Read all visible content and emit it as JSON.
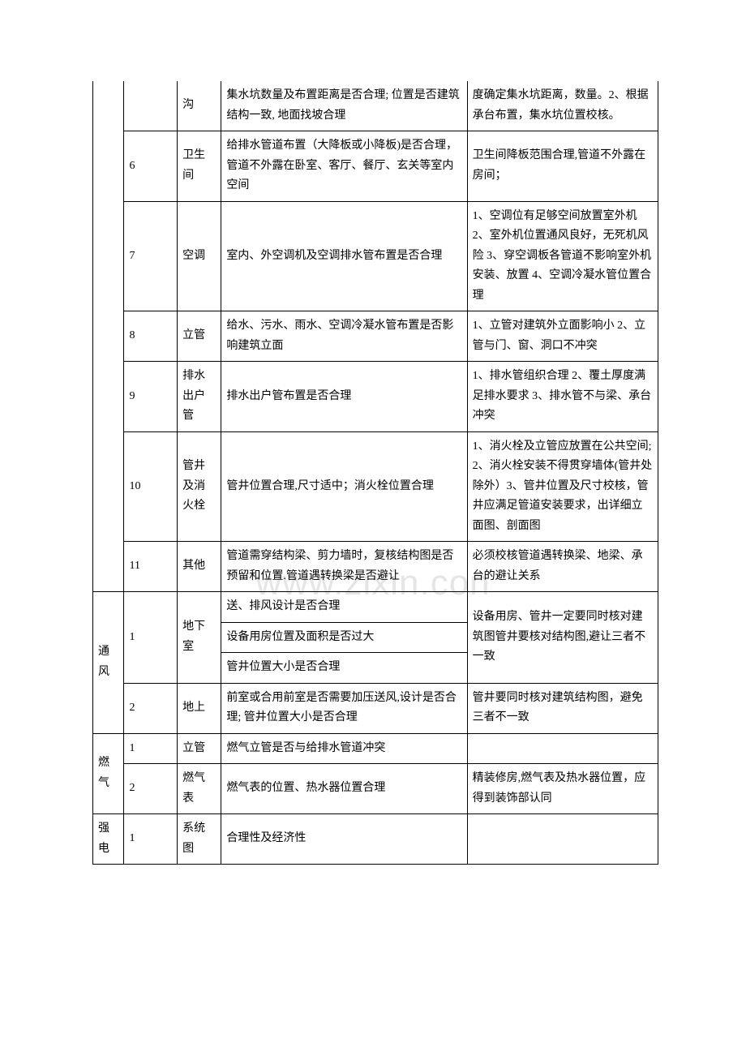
{
  "watermark": "www.zixin.con",
  "rows": [
    {
      "cat": "",
      "num": "",
      "item": "沟",
      "desc": "集水坑数量及布置距离是否合理; 位置是否建筑结构一致, 地面找坡合理",
      "note": "度确定集水坑距离，数量。2、根据承台布置，集水坑位置校核。"
    },
    {
      "num": "6",
      "item": "卫生间",
      "desc": "给排水管道布置（大降板或小降板)是否合理，管道不外露在卧室、客厅、餐厅、玄关等室内空间",
      "note": "卫生间降板范围合理,管道不外露在房间；"
    },
    {
      "num": "7",
      "item": "空调",
      "desc": "室内、外空调机及空调排水管布置是否合理",
      "note": "1、空调位有足够空间放置室外机 2、室外机位置通风良好，无死机风险 3、穿空调板各管道不影响室外机安装、放置 4、空调冷凝水管位置合理"
    },
    {
      "num": "8",
      "item": "立管",
      "desc": "给水、污水、雨水、空调冷凝水管布置是否影响建筑立面",
      "note": "1、立管对建筑外立面影响小 2、立管与门、窗、洞口不冲突"
    },
    {
      "num": "9",
      "item": "排水出户管",
      "desc": "排水出户管布置是否合理",
      "note": "1、排水管组织合理 2、覆土厚度满足排水要求 3、排水管不与梁、承台冲突"
    },
    {
      "num": "10",
      "item": "管井及消火栓",
      "desc": "管井位置合理,尺寸适中；消火栓位置合理",
      "note": "1、消火栓及立管应放置在公共空间;2、消火栓安装不得贯穿墙体(管井处除外）3、管井位置及尺寸校核，管井应满足管道安装要求，出详细立面图、剖面图"
    },
    {
      "num": "11",
      "item": "其他",
      "desc": "管道需穿结构梁、剪力墙时，复核结构图是否预留和位置.管道遇转换梁是否避让",
      "note": "必须校核管道遇转换梁、地梁、承台的避让关系"
    },
    {
      "cat": "通风",
      "num": "1",
      "item": "地下室",
      "desc_a": "送、排风设计是否合理",
      "desc_b": "设备用房位置及面积是否过大",
      "desc_c": "管井位置大小是否合理",
      "note": "设备用房、管井一定要同时核对建筑图管井要核对结构图,避让三者不一致"
    },
    {
      "num": "2",
      "item": "地上",
      "desc": "前室或合用前室是否需要加压送风,设计是否合理; 管井位置大小是否合理",
      "note": "管井要同时核对建筑结构图，避免三者不一致"
    },
    {
      "cat": "燃气",
      "num_a": "1",
      "item_a": "立管",
      "desc_a": "燃气立管是否与给排水管道冲突",
      "note_a": "",
      "num_b": "2",
      "item_b": "燃气表",
      "desc_b": "燃气表的位置、热水器位置合理",
      "note_b": "精装修房,燃气表及热水器位置，应得到装饰部认同"
    },
    {
      "cat": "强电",
      "num": "1",
      "item": "系统图",
      "desc": "合理性及经济性",
      "note": ""
    }
  ]
}
